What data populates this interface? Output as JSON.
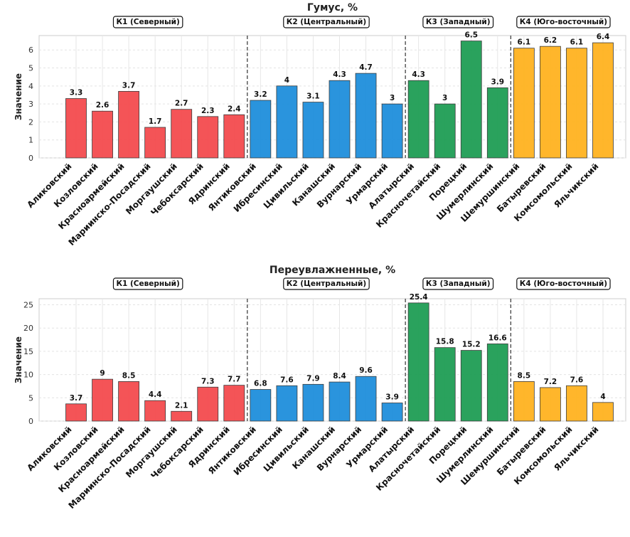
{
  "chart_data": [
    {
      "type": "bar",
      "title": "Гумус, %",
      "ylabel": "Значение",
      "xlabel": "",
      "ylim": [
        0,
        6.8
      ],
      "yticks": [
        0,
        1,
        2,
        3,
        4,
        5,
        6
      ],
      "grid": true,
      "categories": [
        "Аликовский",
        "Козловский",
        "Красноармейский",
        "Мариинско-Посадский",
        "Моргаушский",
        "Чебоксарский",
        "Ядринский",
        "Янтиковский",
        "Ибресинский",
        "Цивильский",
        "Канашский",
        "Вурнарский",
        "Урмарский",
        "Алатырский",
        "Красночетайский",
        "Порецкий",
        "Шумерлинский",
        "Шемуршинский",
        "Батыревский",
        "Комсомольский",
        "Яльчикский"
      ],
      "values": [
        3.3,
        2.6,
        3.7,
        1.7,
        2.7,
        2.3,
        2.4,
        3.2,
        4.0,
        3.1,
        4.3,
        4.7,
        3.0,
        4.3,
        3.0,
        6.5,
        3.9,
        6.1,
        6.2,
        6.1,
        6.4
      ],
      "groups": [
        {
          "label": "К1 (Северный)",
          "start": 0,
          "end": 6,
          "color": "#f44b4f"
        },
        {
          "label": "К2 (Центральный)",
          "start": 7,
          "end": 12,
          "color": "#1f8fdc"
        },
        {
          "label": "К3 (Западный)",
          "start": 13,
          "end": 16,
          "color": "#1f9e55"
        },
        {
          "label": "К4 (Юго-восточный)",
          "start": 17,
          "end": 20,
          "color": "#ffb320"
        }
      ]
    },
    {
      "type": "bar",
      "title": "Переувлажненные, %",
      "ylabel": "Значение",
      "xlabel": "",
      "ylim": [
        0,
        26.3
      ],
      "yticks": [
        0,
        5,
        10,
        15,
        20,
        25
      ],
      "grid": true,
      "categories": [
        "Аликовский",
        "Козловский",
        "Красноармейский",
        "Мариинско-Посадский",
        "Моргаушский",
        "Чебоксарский",
        "Ядринский",
        "Янтиковский",
        "Ибресинский",
        "Цивильский",
        "Канашский",
        "Вурнарский",
        "Урмарский",
        "Алатырский",
        "Красночетайский",
        "Порецкий",
        "Шумерлинский",
        "Шемуршинский",
        "Батыревский",
        "Комсомольский",
        "Яльчикский"
      ],
      "values": [
        3.7,
        9.0,
        8.5,
        4.4,
        2.1,
        7.3,
        7.7,
        6.8,
        7.6,
        7.9,
        8.4,
        9.6,
        3.9,
        25.4,
        15.8,
        15.2,
        16.6,
        8.5,
        7.2,
        7.6,
        4.0
      ],
      "groups": [
        {
          "label": "К1 (Северный)",
          "start": 0,
          "end": 6,
          "color": "#f44b4f"
        },
        {
          "label": "К2 (Центральный)",
          "start": 7,
          "end": 12,
          "color": "#1f8fdc"
        },
        {
          "label": "К3 (Западный)",
          "start": 13,
          "end": 16,
          "color": "#1f9e55"
        },
        {
          "label": "К4 (Юго-восточный)",
          "start": 17,
          "end": 20,
          "color": "#ffb320"
        }
      ]
    }
  ]
}
